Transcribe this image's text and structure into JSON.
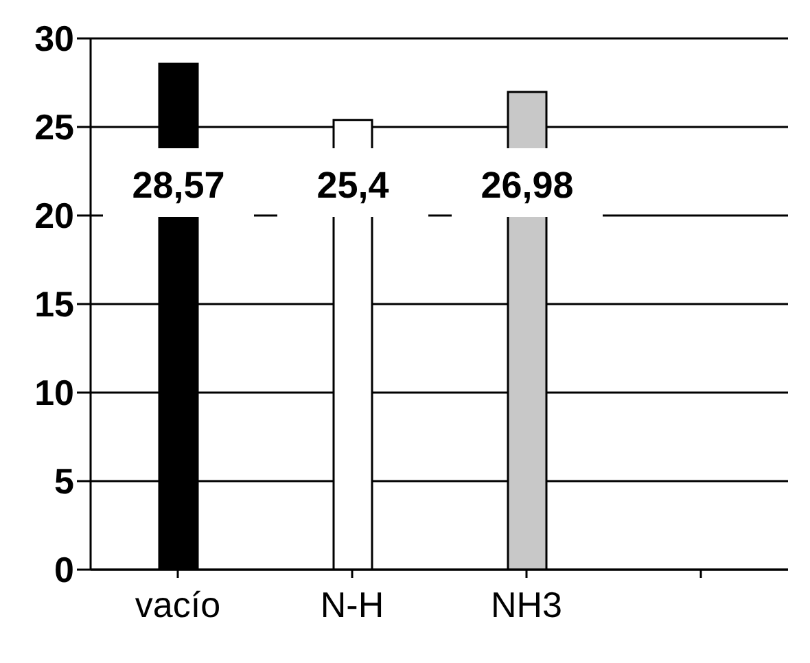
{
  "chart_data": {
    "type": "bar",
    "categories": [
      "vacío",
      "N-H",
      "NH3",
      null
    ],
    "values": [
      28.57,
      25.4,
      26.98,
      null
    ],
    "colors": [
      "#000000",
      "#ffffff",
      "#c8c8c8",
      "#ffffff"
    ],
    "value_labels": [
      "28,57",
      "25,4",
      "26,98",
      null
    ],
    "ylim": [
      0,
      30
    ],
    "yticks": [
      0,
      5,
      10,
      15,
      20,
      25,
      30
    ],
    "grid": "y"
  }
}
